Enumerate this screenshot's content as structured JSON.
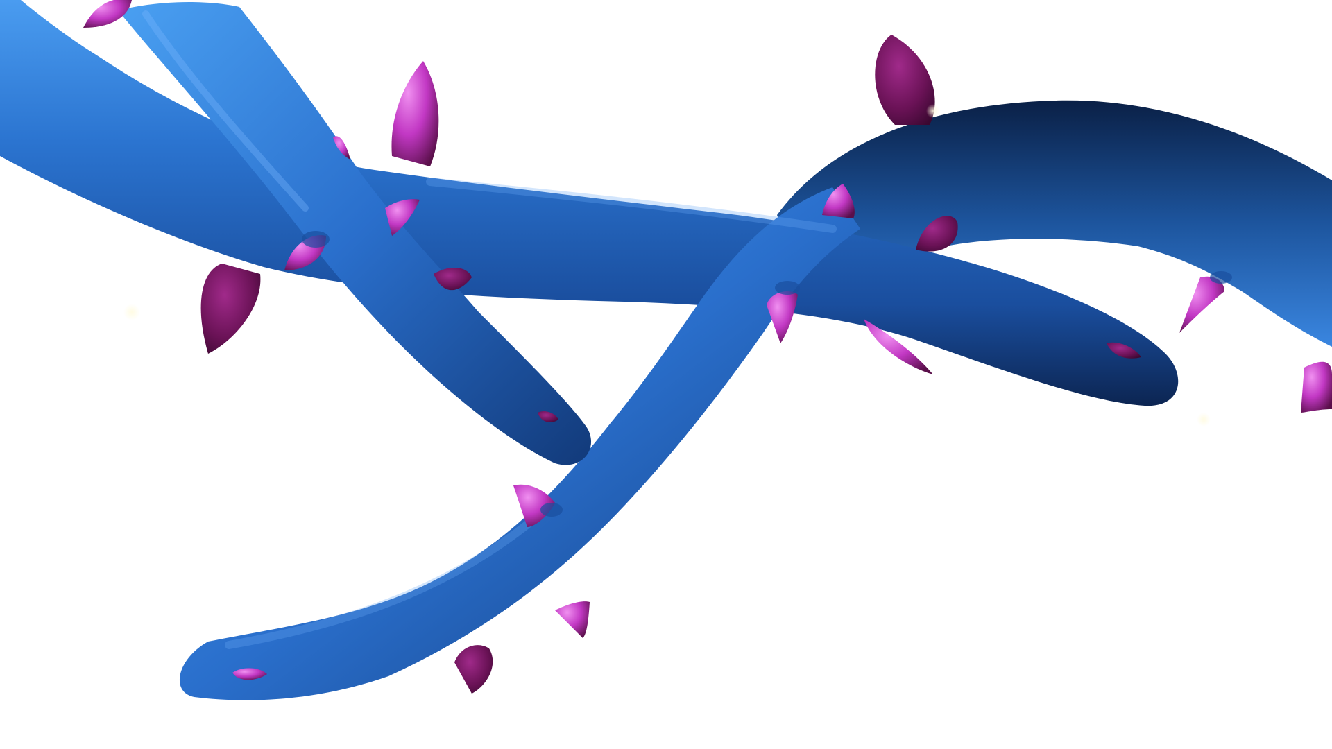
{
  "scene": {
    "subject": "blue-branches-with-magenta-thorns",
    "colors": {
      "background": "#ffffff",
      "branch_light": "#2f7fd8",
      "branch_mid": "#1f5fb8",
      "branch_dark": "#0d2a5c",
      "thorn_light": "#e070e6",
      "thorn_mid": "#b02cb8",
      "thorn_dark": "#5a0f4a"
    },
    "branch_names": [
      "upper-left-branch",
      "diagonal-branch",
      "middle-horizontal-branch",
      "right-curved-branch",
      "lower-s-curve-branch"
    ],
    "thorn_count": 26
  }
}
